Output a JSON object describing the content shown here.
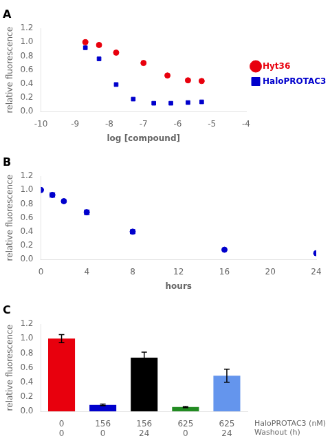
{
  "chart_data": [
    {
      "type": "scatter",
      "title": "A",
      "xlabel": "log [compound]",
      "ylabel": "relative fluorescence",
      "series": [
        {
          "name": "Hyt36",
          "color": "#e8000d",
          "marker": "circle",
          "x": [
            -8.7,
            -8.3,
            -7.8,
            -7.0,
            -6.3,
            -5.7,
            -5.3
          ],
          "values": [
            1.0,
            0.96,
            0.85,
            0.7,
            0.52,
            0.45,
            0.44
          ]
        },
        {
          "name": "HaloPROTAC3",
          "color": "#0000cc",
          "marker": "square",
          "x": [
            -8.7,
            -8.3,
            -7.8,
            -7.3,
            -6.7,
            -6.2,
            -5.7,
            -5.3
          ],
          "values": [
            0.92,
            0.76,
            0.39,
            0.18,
            0.12,
            0.12,
            0.13,
            0.14
          ]
        }
      ],
      "xlim": [
        -10,
        -4
      ],
      "xticks": [
        -10,
        -9,
        -8,
        -7,
        -6,
        -5,
        -4
      ],
      "ylim": [
        0.0,
        1.2
      ],
      "yticks": [
        {
          "value": 0.0,
          "label": "0.0"
        },
        0.2,
        0.4,
        0.6,
        0.8,
        {
          "value": 1.0,
          "label": "1.0"
        },
        1.2
      ],
      "grid": false,
      "legend": "right"
    },
    {
      "type": "scatter",
      "title": "B",
      "xlabel": "hours",
      "ylabel": "relative fluorescence",
      "series": [
        {
          "color": "#0000cc",
          "marker": "circle",
          "x": [
            0,
            1,
            2,
            4,
            8,
            16,
            24
          ],
          "values": [
            1.0,
            0.93,
            0.84,
            0.68,
            0.4,
            0.14,
            0.09
          ],
          "errors": [
            null,
            0.03,
            null,
            0.03,
            0.025,
            null,
            null
          ]
        }
      ],
      "xlim": [
        0,
        24
      ],
      "xticks": [
        0,
        4,
        8,
        12,
        16,
        20,
        24
      ],
      "ylim": [
        0.0,
        1.2
      ],
      "yticks": [
        {
          "value": 0.0,
          "label": "0.0"
        },
        0.2,
        0.4,
        0.6,
        0.8,
        {
          "value": 1.0,
          "label": "1.0"
        },
        1.2
      ],
      "grid": false
    },
    {
      "type": "bar",
      "title": "C",
      "ylabel": "relative fluorescence",
      "categories": [
        [
          "0",
          "0"
        ],
        [
          "156",
          "0"
        ],
        [
          "156",
          "24"
        ],
        [
          "625",
          "0"
        ],
        [
          "625",
          "24"
        ]
      ],
      "values": [
        1.0,
        0.09,
        0.74,
        0.06,
        0.49
      ],
      "errors": [
        0.055,
        0.01,
        0.075,
        0.008,
        0.09
      ],
      "colors": [
        "#e8000d",
        "#0000cc",
        "#000000",
        "#228b22",
        "#6495ed"
      ],
      "annotations": [
        "HaloPROTAC3 (nM)",
        "Washout (h)"
      ],
      "ylim": [
        0.0,
        1.2
      ],
      "yticks": [
        {
          "value": 0.0,
          "label": "0.0"
        },
        0.2,
        0.4,
        0.6,
        0.8,
        {
          "value": 1.0,
          "label": "1.0"
        },
        1.2
      ],
      "grid": false
    }
  ]
}
